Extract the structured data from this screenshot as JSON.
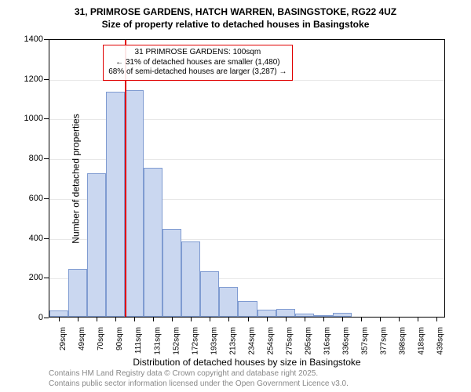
{
  "title_line1": "31, PRIMROSE GARDENS, HATCH WARREN, BASINGSTOKE, RG22 4UZ",
  "title_line2": "Size of property relative to detached houses in Basingstoke",
  "ylabel": "Number of detached properties",
  "xlabel": "Distribution of detached houses by size in Basingstoke",
  "chart": {
    "type": "histogram",
    "ylim": [
      0,
      1400
    ],
    "ytick_step": 200,
    "yticks": [
      0,
      200,
      400,
      600,
      800,
      1000,
      1200,
      1400
    ],
    "categories": [
      "29sqm",
      "49sqm",
      "70sqm",
      "90sqm",
      "111sqm",
      "131sqm",
      "152sqm",
      "172sqm",
      "193sqm",
      "213sqm",
      "234sqm",
      "254sqm",
      "275sqm",
      "295sqm",
      "316sqm",
      "336sqm",
      "357sqm",
      "377sqm",
      "398sqm",
      "418sqm",
      "439sqm"
    ],
    "values": [
      30,
      240,
      720,
      1130,
      1140,
      750,
      440,
      380,
      230,
      150,
      80,
      35,
      40,
      15,
      5,
      20,
      0,
      0,
      2,
      0,
      2
    ],
    "bar_fill_color": "#cad7f0",
    "bar_border_color": "#7f9bd1",
    "grid_color": "#e8e8e8",
    "background_color": "#ffffff",
    "marker": {
      "position_index": 3.5,
      "color": "#e00000",
      "line_width": 1.5
    },
    "annotation": {
      "line1": "31 PRIMROSE GARDENS: 100sqm",
      "line2": "← 31% of detached houses are smaller (1,480)",
      "line3": "68% of semi-detached houses are larger (3,287) →",
      "border_color": "#e00000",
      "bg_color": "rgba(255,255,255,0.9)"
    }
  },
  "footer_line1": "Contains HM Land Registry data © Crown copyright and database right 2025.",
  "footer_line2": "Contains public sector information licensed under the Open Government Licence v3.0."
}
